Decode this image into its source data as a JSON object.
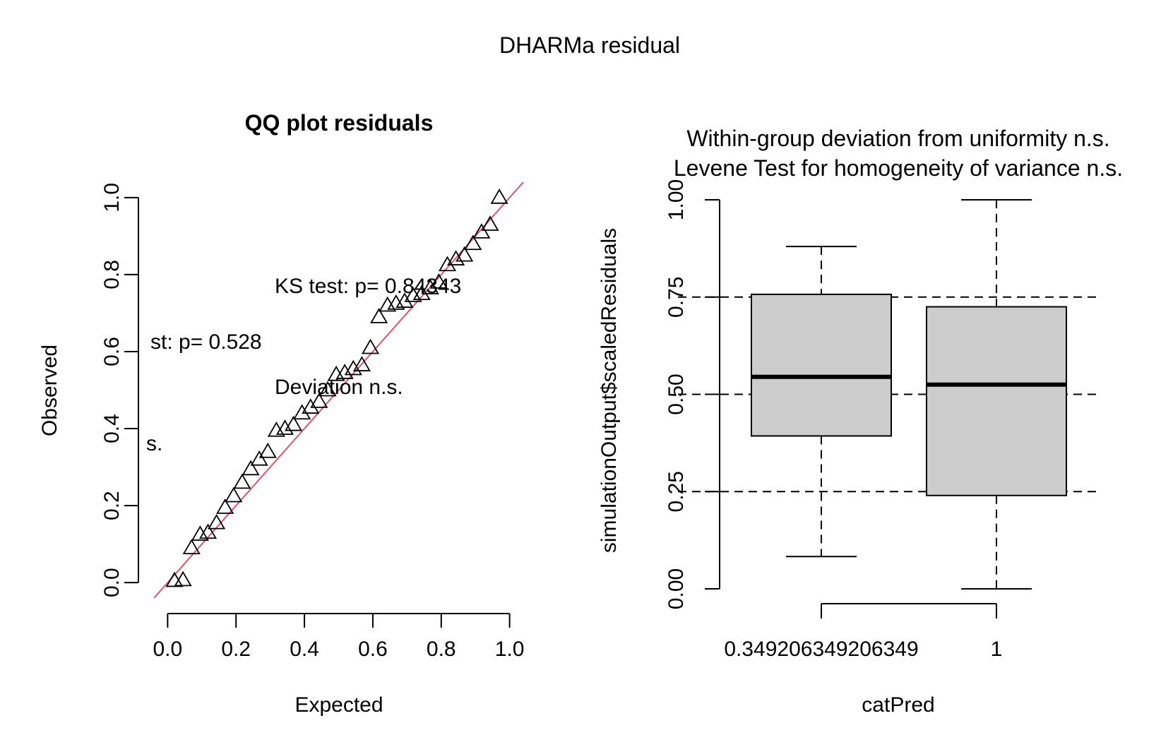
{
  "page": {
    "title": "DHARMa residual"
  },
  "chart_data": [
    {
      "type": "scatter",
      "title": "QQ plot residuals",
      "xlabel": "Expected",
      "ylabel": "Observed",
      "xlim": [
        -0.04,
        1.04
      ],
      "ylim": [
        -0.04,
        1.04
      ],
      "x_ticks": [
        "0.0",
        "0.2",
        "0.4",
        "0.6",
        "0.8",
        "1.0"
      ],
      "y_ticks": [
        "0.0",
        "0.2",
        "0.4",
        "0.6",
        "0.8",
        "1.0"
      ],
      "marker": "triangle-open",
      "reference_line": {
        "slope": 1,
        "intercept": 0,
        "color": "#df536b"
      },
      "annotations": [
        "KS test: p= 0.84343",
        "Deviation  n.s.",
        "st: p= 0.528",
        "s."
      ],
      "x": [
        0.02,
        0.045,
        0.07,
        0.095,
        0.118,
        0.143,
        0.168,
        0.193,
        0.218,
        0.243,
        0.268,
        0.293,
        0.318,
        0.343,
        0.368,
        0.393,
        0.418,
        0.443,
        0.468,
        0.493,
        0.518,
        0.543,
        0.568,
        0.593,
        0.618,
        0.643,
        0.668,
        0.693,
        0.718,
        0.743,
        0.768,
        0.793,
        0.818,
        0.843,
        0.868,
        0.893,
        0.918,
        0.943,
        0.97
      ],
      "y": [
        0.005,
        0.007,
        0.09,
        0.125,
        0.13,
        0.155,
        0.195,
        0.225,
        0.26,
        0.295,
        0.32,
        0.34,
        0.395,
        0.4,
        0.41,
        0.44,
        0.455,
        0.47,
        0.5,
        0.54,
        0.545,
        0.555,
        0.565,
        0.61,
        0.69,
        0.72,
        0.725,
        0.73,
        0.745,
        0.75,
        0.765,
        0.78,
        0.825,
        0.84,
        0.85,
        0.88,
        0.91,
        0.93,
        1.0
      ]
    },
    {
      "type": "box",
      "title": "Within-group deviation from uniformity n.s.",
      "subtitle": "Levene Test for homogeneity of variance n.s.",
      "xlabel": "catPred",
      "ylabel": "simulationOutput$scaledResiduals",
      "ylim": [
        0,
        1
      ],
      "y_ticks": [
        "0.00",
        "0.25",
        "0.50",
        "0.75",
        "1.00"
      ],
      "reference_lines": [
        0.25,
        0.5,
        0.75
      ],
      "categories": [
        "0.349206349206349",
        "1"
      ],
      "boxes": [
        {
          "whisker_low": 0.083,
          "q1": 0.393,
          "median": 0.545,
          "q3": 0.757,
          "whisker_high": 0.88
        },
        {
          "whisker_low": 0.0,
          "q1": 0.24,
          "median": 0.525,
          "q3": 0.725,
          "whisker_high": 1.0
        }
      ],
      "box_fill": "#cccccc"
    }
  ]
}
